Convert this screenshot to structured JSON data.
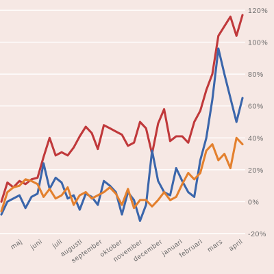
{
  "chart_data": {
    "type": "line",
    "title": "",
    "xlabel": "",
    "ylabel": "",
    "grid": true,
    "legend": "none",
    "y_unit": "%",
    "ylim": [
      -20,
      120
    ],
    "y_ticks": [
      -20,
      0,
      20,
      40,
      60,
      80,
      100,
      120
    ],
    "y_tick_labels": [
      "-20%",
      "0%",
      "20%",
      "40%",
      "60%",
      "80%",
      "100%",
      "120%"
    ],
    "x_tick_labels": [
      "maj",
      "juni",
      "juli",
      "augusti",
      "september",
      "oktober",
      "november",
      "december",
      "januari",
      "februari",
      "mars",
      "april"
    ],
    "series": [
      {
        "color": "#c0393b",
        "values": [
          0,
          12,
          9,
          13,
          11,
          14,
          15,
          28,
          40,
          29,
          31,
          29,
          34,
          41,
          47,
          43,
          33,
          48,
          46,
          44,
          42,
          35,
          37,
          50,
          46,
          30,
          49,
          58,
          38,
          41,
          41,
          37,
          50,
          57,
          70,
          80,
          104,
          110,
          116,
          104,
          117
        ]
      },
      {
        "color": "#3b66ab",
        "values": [
          -8,
          0,
          2,
          4,
          -4,
          3,
          5,
          24,
          8,
          15,
          12,
          2,
          4,
          -5,
          5,
          3,
          -2,
          13,
          10,
          6,
          -8,
          6,
          1,
          -12,
          -2,
          32,
          13,
          6,
          4,
          21,
          13,
          6,
          3,
          26,
          40,
          64,
          96,
          80,
          65,
          50,
          65
        ]
      },
      {
        "color": "#e3802e",
        "values": [
          -6,
          6,
          9,
          10,
          14,
          13,
          11,
          3,
          8,
          2,
          4,
          9,
          -2,
          4,
          6,
          2,
          4,
          6,
          9,
          5,
          -2,
          8,
          -4,
          1,
          1,
          -3,
          1,
          6,
          1,
          3,
          11,
          18,
          14,
          18,
          32,
          36,
          26,
          30,
          21,
          40,
          36
        ]
      }
    ]
  }
}
